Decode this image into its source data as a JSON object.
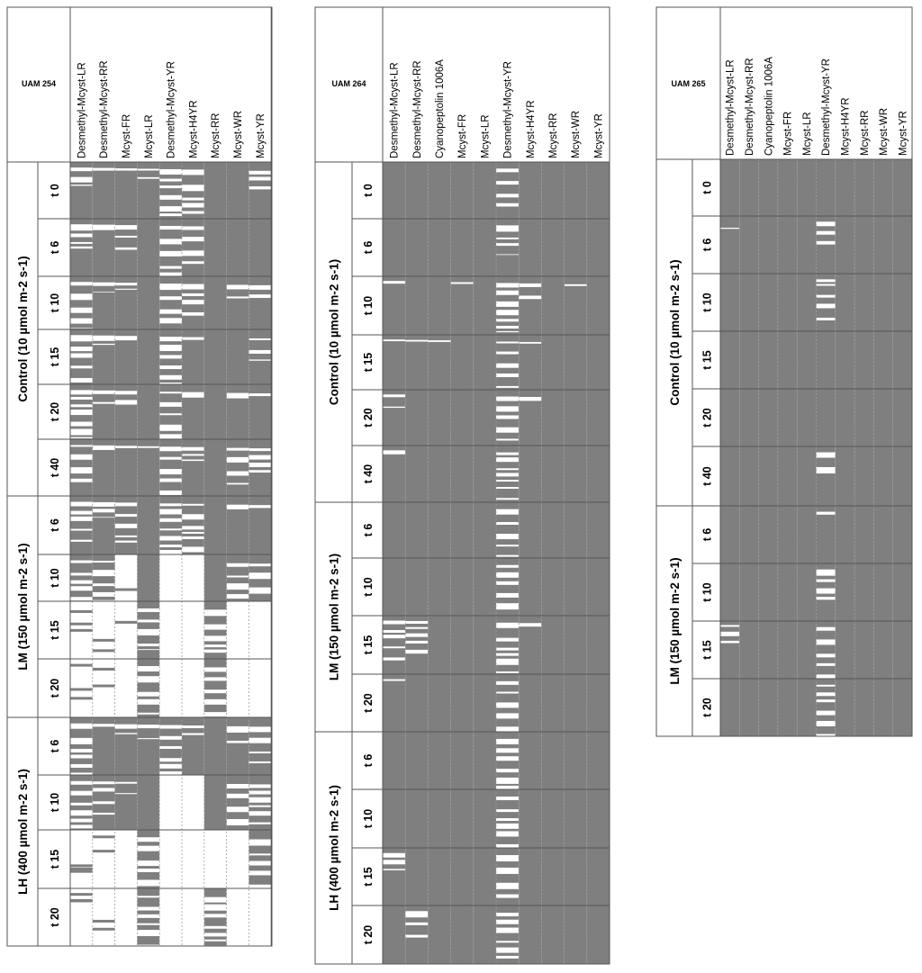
{
  "colors": {
    "present": "#7f7f7f",
    "absent": "#ffffff",
    "frame": "#555555",
    "text": "#000000"
  },
  "chart_data": [
    {
      "type": "heatmap",
      "title": "UAM 254",
      "columns": [
        "Desmethyl-Mcyst-LR",
        "Desmethyl-Mcyst-RR",
        "Mcyst-FR",
        "Mcyst-LR",
        "Desmethyl-Mcyst-YR",
        "Mcyst-H4YR",
        "Mcyst-RR",
        "Mcyst-WR",
        "Mcyst-YR"
      ],
      "groups": [
        {
          "label": "Control (10 µmol m-2 s-1)",
          "times": [
            "t 0",
            "t 6",
            "t 10",
            "t 15",
            "t 20",
            "t 40"
          ]
        },
        {
          "label": "LM (150 µmol m-2 s-1)",
          "times": [
            "t 6",
            "t 10",
            "t 15",
            "t 20"
          ]
        },
        {
          "label": "LH (400 µmol m-2 s-1)",
          "times": [
            "t 6",
            "t 10",
            "t 15",
            "t 20"
          ]
        }
      ],
      "presence_by_column": [
        [
          0.82,
          0.76,
          0.6,
          0.45,
          0.5,
          0.7,
          0.72,
          0.35,
          0,
          0,
          0.22,
          0.3,
          0,
          0
        ],
        [
          0.95,
          0.9,
          0.92,
          0.88,
          0.9,
          0.92,
          0.85,
          0.3,
          0,
          0,
          0.95,
          0.8,
          0,
          0
        ],
        [
          0.96,
          0.85,
          0.93,
          0.92,
          0.85,
          0.96,
          0.75,
          0,
          0,
          0,
          0.9,
          0.95,
          0,
          0
        ],
        [
          0.94,
          1,
          1,
          1,
          1,
          0.97,
          1,
          1,
          0.72,
          0.55,
          0.92,
          1,
          0.35,
          0.52
        ],
        [
          0.25,
          0.2,
          0.14,
          0.1,
          0.18,
          0.08,
          0.05,
          0,
          0,
          0,
          0.1,
          0,
          0,
          0
        ],
        [
          0.6,
          0.72,
          0.7,
          0.95,
          0.9,
          0.88,
          0.35,
          0,
          0,
          0,
          0.92,
          0,
          0,
          0
        ],
        [
          1,
          1,
          1,
          1,
          1,
          1,
          1,
          1,
          0.6,
          0.55,
          1,
          1,
          0,
          0.2
        ],
        [
          1,
          1,
          0.88,
          1,
          0.9,
          0.75,
          0.92,
          0.45,
          0,
          0,
          0.85,
          0.55,
          0,
          0
        ],
        [
          0.82,
          1,
          0.85,
          0.88,
          0.95,
          0.75,
          0.95,
          0.5,
          0,
          0,
          0.75,
          0.62,
          0.08,
          0
        ]
      ]
    },
    {
      "type": "heatmap",
      "title": "UAM 264",
      "columns": [
        "Desmethyl-Mcyst-LR",
        "Desmethyl-Mcyst-RR",
        "Cyanopeptolin 1006A",
        "Mcyst-FR",
        "Mcyst-LR",
        "Desmethyl-Mcyst-YR",
        "Mcyst-H4YR",
        "Mcyst-RR",
        "Mcyst-WR",
        "Mcyst-YR"
      ],
      "groups": [
        {
          "label": "Control (10 µmol m-2 s-1)",
          "times": [
            "t 0",
            "t 6",
            "t 10",
            "t 15",
            "t 20",
            "t 40"
          ]
        },
        {
          "label": "LM (150 µmol m-2 s-1)",
          "times": [
            "t 6",
            "t 10",
            "t 15",
            "t 20"
          ]
        },
        {
          "label": "LH (400 µmol m-2 s-1)",
          "times": [
            "t 6",
            "t 10",
            "t 15",
            "t 20"
          ]
        }
      ],
      "presence_by_column": [
        [
          1,
          1,
          0.95,
          0.97,
          0.93,
          0.93,
          1,
          1,
          0.75,
          0.97,
          1,
          1,
          0.82,
          1
        ],
        [
          1,
          1,
          1,
          0.97,
          1,
          1,
          1,
          1,
          0.75,
          1,
          1,
          1,
          1,
          0.8
        ],
        [
          1,
          1,
          1,
          0.97,
          1,
          1,
          1,
          1,
          1,
          1,
          1,
          1,
          1,
          1
        ],
        [
          1,
          1,
          0.97,
          1,
          1,
          1,
          1,
          1,
          1,
          1,
          1,
          1,
          1,
          1
        ],
        [
          1,
          1,
          1,
          1,
          1,
          1,
          1,
          1,
          1,
          1,
          1,
          1,
          1,
          1
        ],
        [
          0.75,
          0.8,
          0.55,
          0.35,
          0.6,
          0.6,
          0.6,
          0.4,
          0.2,
          0.3,
          0.35,
          0.2,
          0.25,
          0.1
        ],
        [
          1,
          1,
          0.88,
          0.97,
          0.93,
          1,
          1,
          1,
          0.94,
          1,
          1,
          1,
          1,
          1
        ],
        [
          1,
          1,
          1,
          1,
          1,
          1,
          1,
          1,
          1,
          1,
          1,
          1,
          1,
          1
        ],
        [
          1,
          1,
          0.97,
          1,
          1,
          1,
          1,
          1,
          1,
          1,
          1,
          1,
          1,
          1
        ],
        [
          1,
          1,
          1,
          1,
          1,
          1,
          1,
          1,
          1,
          1,
          1,
          1,
          1,
          1
        ]
      ]
    },
    {
      "type": "heatmap",
      "title": "UAM 265",
      "columns": [
        "Desmethyl-Mcyst-LR",
        "Desmethyl-Mcyst-RR",
        "Cyanopeptolin 1006A",
        "Mcyst-FR",
        "Mcyst-LR",
        "Desmethyl-Mcyst-YR",
        "Mcyst-H4YR",
        "Mcyst-RR",
        "Mcyst-WR",
        "Mcyst-YR"
      ],
      "groups": [
        {
          "label": "Control (10 µmol m-2 s-1)",
          "times": [
            "t 0",
            "t 6",
            "t 10",
            "t 15",
            "t 20",
            "t 40"
          ]
        },
        {
          "label": "LM (150 µmol m-2 s-1)",
          "times": [
            "t 6",
            "t 10",
            "t 15",
            "t 20"
          ]
        }
      ],
      "presence_by_column": [
        [
          1,
          0.98,
          1,
          1,
          1,
          1,
          1,
          1,
          0.85,
          1
        ],
        [
          1,
          1,
          1,
          1,
          1,
          1,
          1,
          1,
          1,
          1
        ],
        [
          1,
          1,
          1,
          1,
          1,
          1,
          1,
          1,
          1,
          1
        ],
        [
          1,
          1,
          1,
          1,
          1,
          1,
          1,
          1,
          1,
          1
        ],
        [
          1,
          1,
          1,
          1,
          1,
          1,
          1,
          1,
          1,
          1
        ],
        [
          1,
          0.8,
          0.75,
          1,
          1,
          0.8,
          0.95,
          0.7,
          0.3,
          0.5
        ],
        [
          1,
          1,
          1,
          1,
          1,
          1,
          1,
          1,
          1,
          1
        ],
        [
          1,
          1,
          1,
          1,
          1,
          1,
          1,
          1,
          1,
          1
        ],
        [
          1,
          1,
          1,
          1,
          1,
          1,
          1,
          1,
          1,
          1
        ],
        [
          1,
          1,
          1,
          1,
          1,
          1,
          1,
          1,
          1,
          1
        ]
      ]
    }
  ]
}
